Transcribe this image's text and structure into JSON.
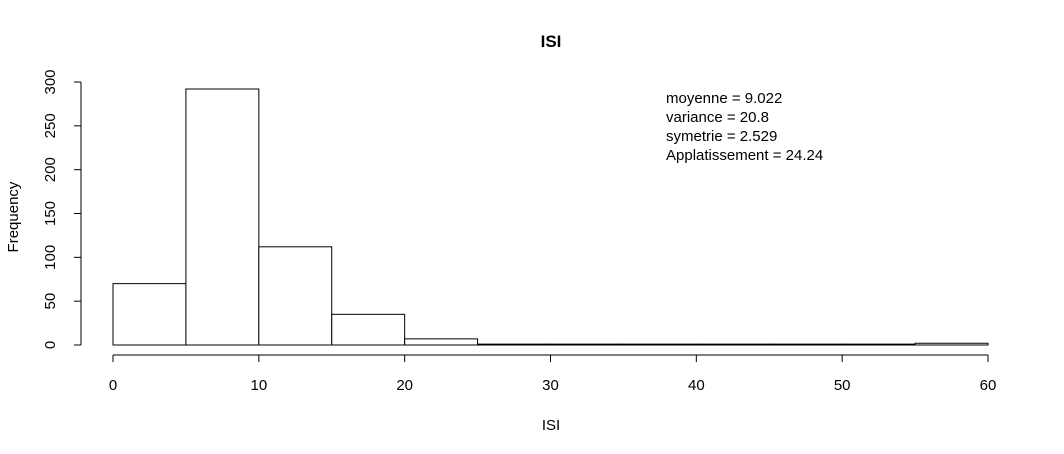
{
  "chart_data": {
    "type": "bar",
    "title": "ISI",
    "xlabel": "ISI",
    "ylabel": "Frequency",
    "bin_edges": [
      0,
      5,
      10,
      15,
      20,
      25,
      30,
      35,
      40,
      45,
      50,
      55,
      60
    ],
    "values": [
      70,
      292,
      112,
      35,
      7,
      1,
      1,
      1,
      1,
      1,
      1,
      2
    ],
    "xlim": [
      0,
      60
    ],
    "ylim": [
      0,
      300
    ],
    "x_ticks": [
      "0",
      "10",
      "20",
      "30",
      "40",
      "50",
      "60"
    ],
    "y_ticks": [
      "0",
      "50",
      "100",
      "150",
      "200",
      "250",
      "300"
    ],
    "grid": false,
    "legend": "none",
    "annotations": [
      "moyenne = 9.022",
      "variance = 20.8",
      "symetrie = 2.529",
      "Applatissement = 24.24"
    ],
    "colors": {
      "bar_fill": "#ffffff",
      "bar_stroke": "#000000"
    }
  }
}
